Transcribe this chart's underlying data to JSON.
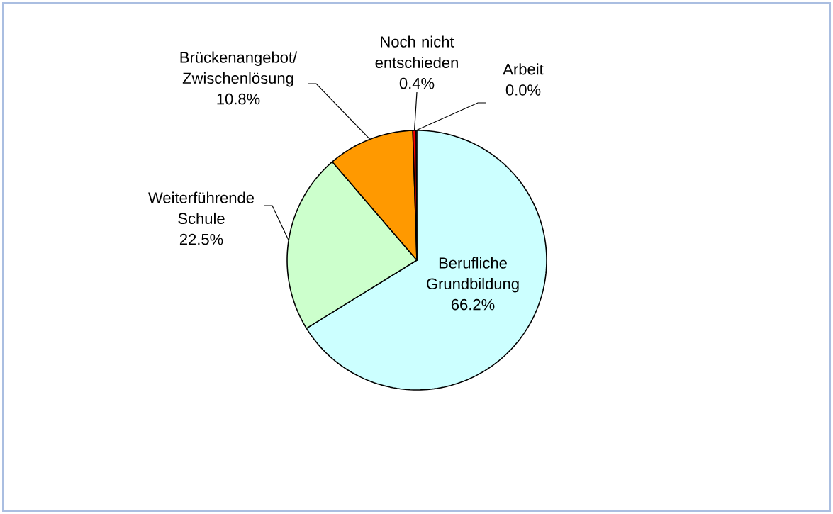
{
  "chart_data": {
    "type": "pie",
    "categories": [
      "Berufliche Grundbildung",
      "Weiterführende Schule",
      "Brückenangebot/ Zwischenlösung",
      "Noch nicht entschieden",
      "Arbeit"
    ],
    "values": [
      66.2,
      22.5,
      10.8,
      0.4,
      0.0
    ],
    "value_labels": [
      "66.2%",
      "22.5%",
      "10.8%",
      "0.4%",
      "0.0%"
    ],
    "colors": [
      "#ccffff",
      "#ccffcc",
      "#ff9900",
      "#ff0000",
      "#ffff99"
    ]
  }
}
